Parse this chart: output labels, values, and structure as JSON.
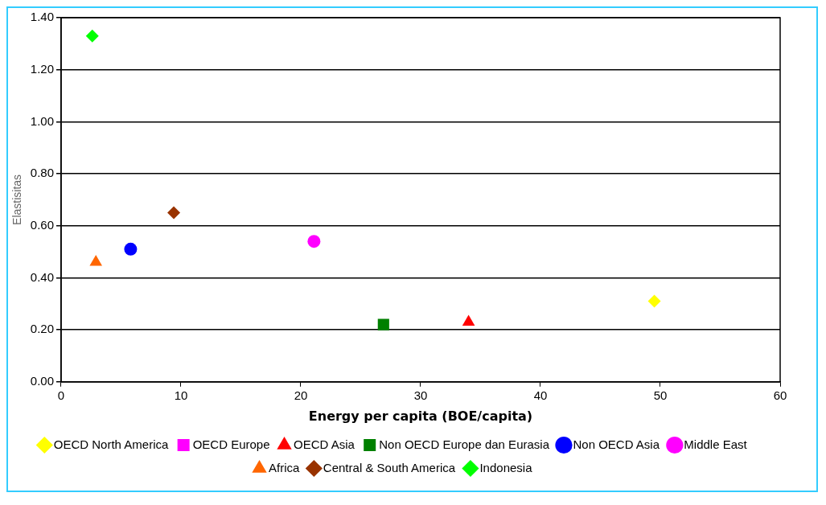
{
  "chart_data": {
    "type": "scatter",
    "xlabel": "Energy per capita (BOE/capita)",
    "ylabel": "Elastisitas",
    "xlim": [
      0,
      60
    ],
    "xticks": [
      0,
      10,
      20,
      30,
      40,
      50,
      60
    ],
    "ylim": [
      0,
      1.4
    ],
    "yticks": [
      {
        "value": 0,
        "label": "0.00"
      },
      {
        "value": 0.2,
        "label": "0.20"
      },
      {
        "value": 0.4,
        "label": "0.40"
      },
      {
        "value": 0.6,
        "label": "0.60"
      },
      {
        "value": 0.8,
        "label": "0.80"
      },
      {
        "value": 1.0,
        "label": "1.00"
      },
      {
        "value": 1.2,
        "label": "1.20"
      },
      {
        "value": 1.4,
        "label": "1.40"
      }
    ],
    "grid": "y",
    "legend": "bottom",
    "series": [
      {
        "name": "OECD North America",
        "color": "#ffff00",
        "marker": "diamond",
        "x": [
          49.5
        ],
        "values": [
          0.31
        ]
      },
      {
        "name": "OECD Europe",
        "color": "#ff00ff",
        "marker": "square",
        "x": [
          null
        ],
        "values": [
          null
        ]
      },
      {
        "name": "OECD Asia",
        "color": "#ff0000",
        "marker": "triangle",
        "x": [
          34.0
        ],
        "values": [
          0.23
        ]
      },
      {
        "name": "Non OECD Europe dan Eurasia",
        "color": "#008000",
        "marker": "square",
        "x": [
          26.9
        ],
        "values": [
          0.22
        ]
      },
      {
        "name": "Non OECD Asia",
        "color": "#0000ff",
        "marker": "circle",
        "x": [
          5.8
        ],
        "values": [
          0.51
        ]
      },
      {
        "name": "Middle East",
        "color": "#ff00ff",
        "marker": "circle",
        "x": [
          21.1
        ],
        "values": [
          0.54
        ]
      },
      {
        "name": "Africa",
        "color": "#ff6600",
        "marker": "triangle",
        "x": [
          2.9
        ],
        "values": [
          0.46
        ]
      },
      {
        "name": "Central & South America",
        "color": "#993300",
        "marker": "diamond",
        "x": [
          9.4
        ],
        "values": [
          0.65
        ]
      },
      {
        "name": "Indonesia",
        "color": "#00ff00",
        "marker": "diamond",
        "x": [
          2.6
        ],
        "values": [
          1.33
        ]
      }
    ]
  }
}
